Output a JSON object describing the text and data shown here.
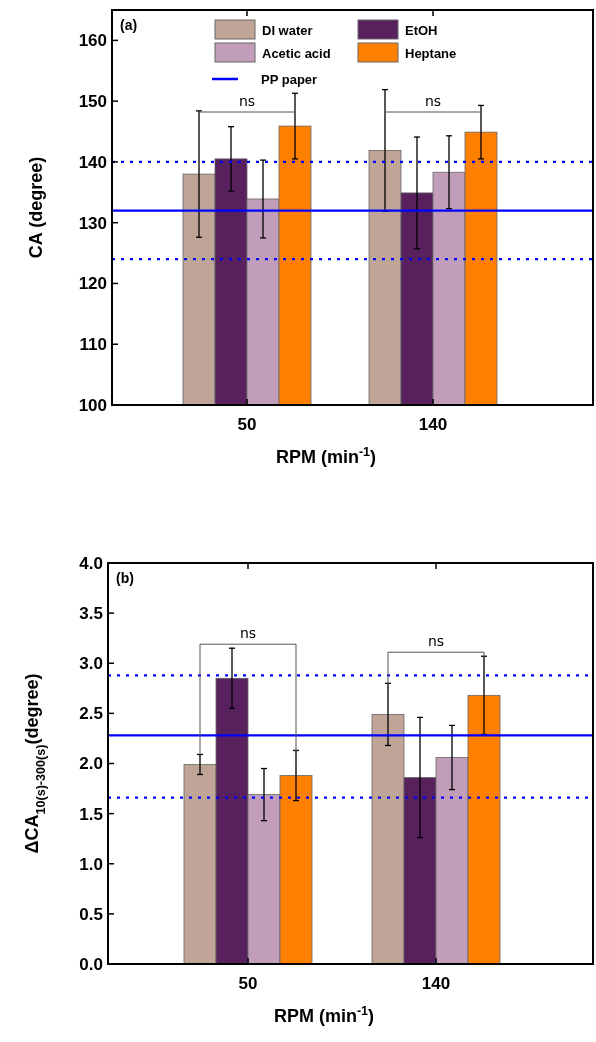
{
  "chart_data": [
    {
      "type": "bar",
      "categories": [
        "50",
        "140"
      ],
      "xlabel": "RPM (min$^{-1}$)",
      "ylabel": "CA (degree)",
      "ylim": [
        100,
        165
      ],
      "yticks": [
        100,
        110,
        120,
        130,
        140,
        150,
        160
      ],
      "legend": "top",
      "series": [
        {
          "name": "DI water",
          "color": "#c0a498",
          "values": [
            138.0,
            141.9
          ],
          "errors": [
            10.4,
            10
          ]
        },
        {
          "name": "EtOH",
          "color": "#58205c",
          "values": [
            140.5,
            134.9
          ],
          "errors": [
            5.3,
            9.2
          ]
        },
        {
          "name": "Acetic acid",
          "color": "#c29db9",
          "values": [
            133.9,
            138.3
          ],
          "errors": [
            6.4,
            6
          ]
        },
        {
          "name": "Heptane",
          "color": "#ff8000",
          "values": [
            145.9,
            144.9
          ],
          "errors": [
            5.4,
            4.4
          ]
        }
      ],
      "ref_lines": [
        {
          "axis": "y",
          "value": 132,
          "label": "PP paper",
          "color": "#0000ff",
          "line_style": "solid"
        },
        {
          "axis": "y",
          "value": 140,
          "color": "#0000ff",
          "line_style": "dotted"
        },
        {
          "axis": "y",
          "value": 124,
          "color": "#0000ff",
          "line_style": "dotted"
        }
      ],
      "annotations": [
        "(a)",
        "ns",
        "ns"
      ]
    },
    {
      "type": "bar",
      "categories": [
        "50",
        "140"
      ],
      "xlabel": "RPM (min$^{-1}$)",
      "ylabel": "ΔCA$_{10(s)-300(s)}$(degree)",
      "ylim": [
        0,
        4.0
      ],
      "yticks": [
        {
          "value": 0,
          "label": "0.0"
        },
        {
          "value": 0.5,
          "label": "0.5"
        },
        {
          "value": 1,
          "label": "1.0"
        },
        {
          "value": 1.5,
          "label": "1.5"
        },
        {
          "value": 2,
          "label": "2.0"
        },
        {
          "value": 2.5,
          "label": "2.5"
        },
        {
          "value": 3,
          "label": "3.0"
        },
        {
          "value": 3.5,
          "label": "3.5"
        },
        {
          "value": 4,
          "label": "4.0"
        }
      ],
      "legend": false,
      "series": [
        {
          "color": "#c0a498",
          "values": [
            1.99,
            2.49
          ],
          "errors": [
            0.1,
            0.31
          ]
        },
        {
          "color": "#58205c",
          "values": [
            2.85,
            1.86
          ],
          "errors": [
            0.3,
            0.6
          ]
        },
        {
          "color": "#c29db9",
          "values": [
            1.69,
            2.06
          ],
          "errors": [
            0.26,
            0.32
          ]
        },
        {
          "color": "#ff8000",
          "values": [
            1.88,
            2.68
          ],
          "errors": [
            0.25,
            0.39
          ]
        }
      ],
      "ref_lines": [
        {
          "axis": "y",
          "value": 2.28,
          "color": "#0000ff",
          "line_style": "solid"
        },
        {
          "axis": "y",
          "value": 2.88,
          "color": "#0000ff",
          "line_style": "dotted"
        },
        {
          "axis": "y",
          "value": 1.66,
          "color": "#0000ff",
          "line_style": "dotted"
        }
      ],
      "annotations": [
        "(b)",
        "ns",
        "ns"
      ]
    }
  ]
}
